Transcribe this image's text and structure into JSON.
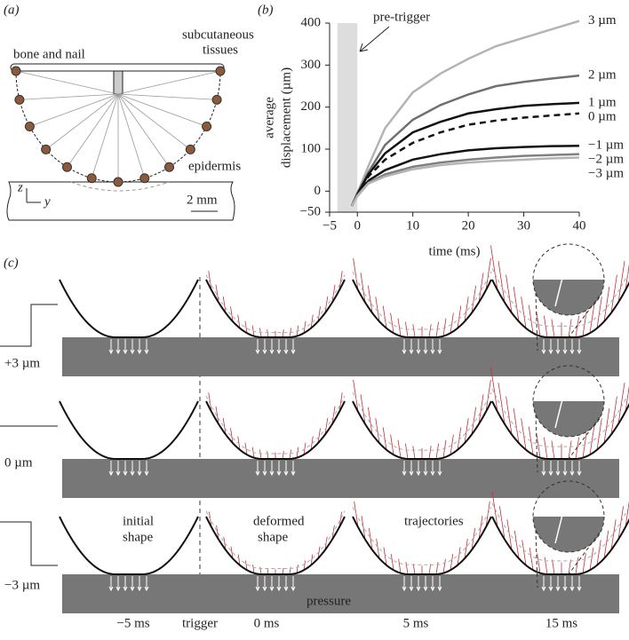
{
  "panel_labels": [
    "(a)",
    "(b)",
    "(c)"
  ],
  "panel_a": {
    "bone": "bone and nail",
    "tissue": [
      "subcutaneous",
      "tissues"
    ],
    "epidermis": "epidermis",
    "scale": "2 mm",
    "z": "z",
    "y": "y"
  },
  "chart_data": {
    "type": "line",
    "annotation": "pre-trigger",
    "xlabel": "time (ms)",
    "ylabel": [
      "average",
      "displacement (µm)"
    ],
    "x": [
      -1,
      0,
      2,
      5,
      10,
      15,
      20,
      25,
      30,
      35,
      40
    ],
    "shade": [
      -3.6,
      0
    ],
    "xlim": [
      -5,
      40
    ],
    "xticks": [
      {
        "value": -5,
        "label": "−5"
      },
      0,
      10,
      20,
      30,
      40
    ],
    "ylim": [
      -50,
      400
    ],
    "yticks": [
      {
        "value": -50,
        "label": "−50"
      },
      0,
      100,
      200,
      300,
      400
    ],
    "series": [
      {
        "name": "3 µm",
        "color": "#b4b4b4",
        "dash": false,
        "values": [
          -35,
          -5,
          60,
          150,
          235,
          280,
          315,
          345,
          365,
          385,
          405
        ]
      },
      {
        "name": "2 µm",
        "color": "#707070",
        "dash": false,
        "values": [
          -35,
          -5,
          45,
          110,
          170,
          205,
          230,
          250,
          260,
          268,
          275
        ]
      },
      {
        "name": "1 µm",
        "color": "#111111",
        "dash": false,
        "values": [
          -35,
          -8,
          40,
          90,
          140,
          165,
          185,
          195,
          203,
          207,
          210
        ]
      },
      {
        "name": "0 µm",
        "color": "#111111",
        "dash": true,
        "values": [
          -35,
          -8,
          35,
          75,
          115,
          140,
          158,
          168,
          175,
          180,
          185
        ]
      },
      {
        "name": "−1 µm",
        "color": "#111111",
        "dash": false,
        "values": [
          -35,
          -10,
          25,
          50,
          75,
          88,
          97,
          102,
          105,
          107,
          108
        ]
      },
      {
        "name": "−2 µm",
        "color": "#808080",
        "dash": false,
        "values": [
          -35,
          -10,
          20,
          40,
          58,
          68,
          75,
          80,
          84,
          86,
          88
        ]
      },
      {
        "name": "−3 µm",
        "color": "#b4b4b4",
        "dash": false,
        "values": [
          -35,
          -12,
          18,
          35,
          52,
          62,
          68,
          72,
          75,
          78,
          80
        ]
      }
    ]
  },
  "panel_c": {
    "rows": [
      "+3 µm",
      "0 µm",
      "−3 µm"
    ],
    "columns": [
      "−5 ms",
      "trigger",
      "0 ms",
      "5 ms",
      "15 ms"
    ],
    "annotations": {
      "initial": [
        "initial",
        "shape"
      ],
      "deformed": [
        "deformed",
        "shape"
      ],
      "trajectories": "trajectories",
      "pressure": "pressure"
    }
  }
}
